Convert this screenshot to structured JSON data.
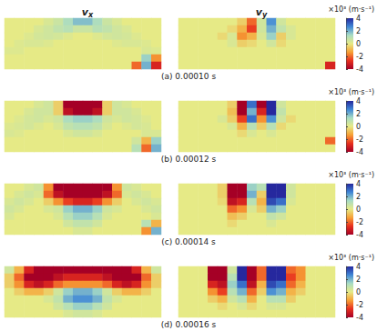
{
  "chart_data": [
    {
      "type": "heatmap",
      "caption": "(a) 0.00010 s",
      "tick_labels": false,
      "colorbar": {
        "label": "×10³ (m·s⁻¹)",
        "range": [
          -4,
          4
        ],
        "ticks": [
          4,
          2,
          0,
          -2,
          -4
        ]
      },
      "panels": [
        {
          "title": "vx",
          "cells": [
            [
              0,
              0,
              0,
              0,
              0.3,
              0.6,
              1.2,
              1.8,
              1.8,
              1.2,
              0.6,
              0.3,
              0,
              0,
              0,
              0
            ],
            [
              0,
              0,
              0,
              0.3,
              0.5,
              0.8,
              1,
              0.6,
              0.6,
              1,
              0.8,
              0.5,
              0.3,
              0,
              0,
              0
            ],
            [
              0,
              0,
              0.2,
              0.4,
              0.5,
              0.4,
              0.2,
              0,
              0,
              0.2,
              0.4,
              0.5,
              0.4,
              0.2,
              0,
              0
            ],
            [
              0,
              0.2,
              0.3,
              0.3,
              0.2,
              0,
              0,
              0,
              0,
              0,
              0,
              0.2,
              0.3,
              0.3,
              0.2,
              0
            ],
            [
              0.2,
              0.2,
              0,
              0,
              0,
              0,
              0,
              0,
              0,
              0,
              0,
              0,
              0,
              0,
              0.3,
              0.2
            ],
            [
              0,
              0,
              0,
              0,
              0,
              0,
              0,
              0,
              0,
              0,
              0,
              0,
              0,
              0,
              1.5,
              -1.5
            ],
            [
              0,
              0,
              0,
              0,
              0,
              0,
              0,
              0,
              0,
              0,
              0,
              0,
              0,
              -2,
              2,
              -3
            ]
          ]
        },
        {
          "title": "vy",
          "cells": [
            [
              0,
              0,
              0,
              0,
              0,
              0,
              -0.5,
              -2,
              0.5,
              2.5,
              0.5,
              0,
              0,
              0,
              0,
              0
            ],
            [
              0,
              0,
              0,
              0,
              0,
              -0.3,
              -1,
              -2.5,
              0.5,
              2,
              0.8,
              0.3,
              0,
              0,
              0,
              0
            ],
            [
              0,
              0,
              0,
              0,
              -0.3,
              0.3,
              -1.5,
              -1,
              0.3,
              1.5,
              -0.5,
              0.3,
              0,
              0,
              0,
              0
            ],
            [
              0,
              0,
              0,
              0,
              0,
              0.3,
              -0.5,
              -0.3,
              0,
              0.5,
              -0.3,
              0,
              0,
              0,
              0,
              0
            ],
            [
              0,
              0,
              0,
              0,
              0,
              0,
              0,
              0,
              0,
              0,
              0,
              0,
              0,
              0,
              0,
              0
            ],
            [
              0,
              0,
              0,
              0,
              0,
              0,
              0,
              0,
              0,
              0,
              0,
              0,
              0,
              0,
              0,
              0
            ],
            [
              0,
              0,
              0,
              0,
              0,
              0,
              0,
              0,
              0,
              0,
              0,
              0,
              0,
              0,
              0,
              -3
            ]
          ]
        }
      ]
    },
    {
      "type": "heatmap",
      "caption": "(b) 0.00012 s",
      "tick_labels": false,
      "colorbar": {
        "label": "×10³ (m·s⁻¹)",
        "range": [
          -4,
          4
        ],
        "ticks": [
          4,
          2,
          0,
          -2,
          -4
        ]
      },
      "panels": [
        {
          "cells": [
            [
              0,
              0,
              0,
              0.3,
              0.5,
              -0.5,
              -4,
              -4,
              -4,
              -4,
              -0.5,
              0.5,
              0.3,
              0,
              0,
              0
            ],
            [
              0,
              0,
              0.3,
              0.5,
              0.5,
              -0.5,
              -3.5,
              -4,
              -4,
              -3.5,
              -0.5,
              0.5,
              0.5,
              0.3,
              0,
              0
            ],
            [
              0,
              0.2,
              0.4,
              0.5,
              0.3,
              0.5,
              1.2,
              1.5,
              1.5,
              1.2,
              0.5,
              0.3,
              0.5,
              0.4,
              0.2,
              0
            ],
            [
              0.2,
              0.3,
              0.4,
              0.2,
              0,
              0.3,
              0.8,
              1,
              1,
              0.8,
              0.3,
              0,
              0.2,
              0.4,
              0.3,
              0
            ],
            [
              0.3,
              0.2,
              0,
              0,
              0,
              0,
              0.3,
              0.5,
              0.5,
              0.3,
              0,
              0,
              0,
              0,
              0.3,
              0.3
            ],
            [
              0,
              0,
              0,
              0,
              0,
              0,
              0,
              0,
              0,
              0,
              0,
              0,
              0,
              0.5,
              -1,
              1.5
            ],
            [
              0,
              0,
              0,
              0,
              0,
              0,
              0,
              0,
              0,
              0,
              0,
              0,
              0,
              1,
              -2,
              2
            ]
          ]
        },
        {
          "cells": [
            [
              0,
              0,
              0,
              0,
              0,
              -0.5,
              -4,
              3,
              -4,
              4,
              0.5,
              0,
              0,
              0,
              0,
              0
            ],
            [
              0,
              0,
              0,
              0,
              0,
              -0.8,
              -4,
              2,
              -3,
              4,
              0.8,
              0,
              0,
              0,
              0,
              0
            ],
            [
              0,
              0,
              0,
              0,
              0.3,
              -0.5,
              -2.5,
              3,
              -1.5,
              2.5,
              0.5,
              -0.3,
              0,
              0,
              0,
              0
            ],
            [
              0,
              0,
              0,
              0,
              0,
              0.3,
              -1,
              1,
              -0.5,
              1,
              -0.3,
              0,
              0,
              0,
              0,
              0
            ],
            [
              0,
              0,
              0,
              0,
              0,
              0,
              -0.3,
              0.3,
              0,
              0.3,
              0,
              0,
              0,
              0,
              0,
              0
            ],
            [
              0,
              0,
              0,
              0,
              0,
              0,
              0,
              0,
              0,
              0,
              0,
              0,
              0,
              0,
              0,
              -2
            ],
            [
              0,
              0,
              0,
              0,
              0,
              0,
              0,
              0,
              0,
              0,
              0,
              0,
              0,
              0,
              0,
              0
            ]
          ]
        }
      ]
    },
    {
      "type": "heatmap",
      "caption": "(c) 0.00014 s",
      "tick_labels": false,
      "colorbar": {
        "label": "×10³ (m·s⁻¹)",
        "range": [
          -4,
          4
        ],
        "ticks": [
          4,
          2,
          0,
          -2,
          -4
        ]
      },
      "panels": [
        {
          "cells": [
            [
              0,
              0,
              0.3,
              0.5,
              -1.5,
              -4,
              -4,
              -4,
              -4,
              -4,
              -4,
              -1.5,
              0.5,
              0.3,
              0,
              0
            ],
            [
              0,
              0.3,
              0.5,
              0.3,
              -2,
              -3.5,
              -4,
              -4,
              -4,
              -4,
              -3.5,
              -2,
              0.3,
              0.5,
              0.3,
              0
            ],
            [
              0.3,
              0.5,
              0.3,
              0,
              -0.5,
              -1.5,
              -2.5,
              -3,
              -3,
              -2.5,
              -1.5,
              -0.5,
              0,
              0.3,
              0.5,
              0.3
            ],
            [
              0.5,
              0.3,
              0,
              0,
              0.3,
              0.5,
              1.5,
              2,
              2,
              1.5,
              0.5,
              0.3,
              0,
              0,
              0.3,
              0.5
            ],
            [
              0.3,
              0,
              0,
              0,
              0,
              0.3,
              1,
              1.5,
              1.5,
              1,
              0.3,
              0,
              0,
              0,
              0,
              0.3
            ],
            [
              0,
              0,
              0,
              0,
              0,
              0,
              0.5,
              0.8,
              0.8,
              0.5,
              0,
              0,
              0,
              0,
              1,
              -1
            ],
            [
              0,
              0,
              0,
              0,
              0,
              0,
              0,
              0.3,
              0.3,
              0,
              0,
              0,
              0,
              0,
              -1.5,
              2
            ]
          ]
        },
        {
          "cells": [
            [
              0,
              0,
              0,
              0,
              -0.5,
              -4,
              -4,
              1.5,
              1,
              4,
              4,
              0.5,
              0,
              0,
              0,
              0
            ],
            [
              0,
              0,
              0,
              0,
              -0.5,
              -4,
              -4,
              2,
              -0.5,
              4,
              4,
              0.5,
              0,
              0,
              0,
              0
            ],
            [
              0,
              0,
              0,
              0,
              -0.3,
              -3.5,
              -3,
              1,
              -1,
              3.5,
              3,
              0.3,
              0,
              0,
              0,
              0
            ],
            [
              0,
              0,
              0,
              0,
              0,
              -2,
              -1.5,
              0.3,
              -0.5,
              2,
              1.5,
              0,
              0,
              0,
              0,
              0
            ],
            [
              0,
              0,
              0,
              0,
              0,
              -0.8,
              -0.5,
              0,
              0,
              0.8,
              0.5,
              0,
              0,
              0,
              0,
              0
            ],
            [
              0,
              0,
              0,
              0,
              0,
              -0.3,
              0,
              0,
              0,
              0.3,
              0,
              0,
              0,
              0,
              0,
              0
            ],
            [
              0,
              0,
              0,
              0,
              0,
              0,
              0,
              0,
              0,
              0,
              0,
              0,
              0,
              0,
              0,
              0
            ]
          ]
        }
      ]
    },
    {
      "type": "heatmap",
      "caption": "(d) 0.00016 s",
      "tick_labels": false,
      "colorbar": {
        "label": "×10³ (m·s⁻¹)",
        "range": [
          -4,
          4
        ],
        "ticks": [
          4,
          2,
          0,
          -2,
          -4
        ]
      },
      "panels": [
        {
          "cells": [
            [
              0.5,
              -1,
              -3,
              -4,
              -4,
              -4,
              -4,
              -4,
              -4,
              -4,
              -4,
              -4,
              -4,
              -3,
              -1,
              0.5
            ],
            [
              -0.5,
              -2,
              -4,
              -4,
              -4,
              -3.5,
              -3,
              -3,
              -3,
              -3,
              -3.5,
              -4,
              -4,
              -4,
              -2,
              -0.5
            ],
            [
              -0.5,
              -1.5,
              -3,
              -3.5,
              -3,
              -2,
              -1.5,
              -1.5,
              -1.5,
              -1.5,
              -2,
              -3,
              -3.5,
              -3,
              -1.5,
              -0.5
            ],
            [
              0,
              -0.5,
              -1,
              -1,
              -0.5,
              0.5,
              1.5,
              2,
              2,
              1.5,
              0.5,
              -0.5,
              -1,
              -1,
              -0.5,
              0
            ],
            [
              0,
              0,
              0,
              0,
              0.3,
              0.8,
              2,
              2.5,
              2.5,
              2,
              0.8,
              0.3,
              0,
              0,
              0,
              0
            ],
            [
              0,
              0,
              0,
              0,
              0,
              0.5,
              1,
              1.5,
              1.5,
              1,
              0.5,
              0,
              0,
              0,
              0,
              0
            ],
            [
              0,
              0,
              0,
              0,
              0,
              0,
              0.3,
              0.5,
              0.5,
              0.3,
              0,
              0,
              0,
              0,
              0,
              0
            ]
          ]
        },
        {
          "cells": [
            [
              0,
              0,
              0,
              -4,
              -4,
              0.5,
              4,
              -4,
              -2,
              4,
              4,
              -2,
              -1.5,
              0,
              0,
              0
            ],
            [
              0,
              0,
              0,
              -4,
              -4,
              1,
              4,
              -4,
              -2,
              4,
              4,
              -2.5,
              -1.5,
              0,
              0,
              0
            ],
            [
              0,
              0,
              0,
              -3,
              -3.5,
              1.5,
              3,
              -3.5,
              -1,
              3.5,
              3,
              -2,
              -1,
              0,
              0,
              0
            ],
            [
              0,
              0,
              0,
              -1.5,
              -2.5,
              1,
              2,
              -2,
              -0.5,
              2.5,
              2,
              -1,
              -0.5,
              0,
              0,
              0
            ],
            [
              0,
              0,
              0,
              -0.5,
              -1,
              0.5,
              1,
              -1,
              0,
              1,
              1,
              -0.5,
              0,
              0,
              0,
              0
            ],
            [
              0,
              0,
              0,
              0,
              -0.3,
              0,
              0.3,
              -0.3,
              0,
              0.3,
              0.3,
              0,
              0,
              0,
              0,
              0
            ],
            [
              0,
              0,
              0,
              0,
              0,
              0,
              0,
              0,
              0,
              0,
              0,
              0,
              0,
              0,
              0,
              0
            ]
          ]
        }
      ]
    }
  ]
}
